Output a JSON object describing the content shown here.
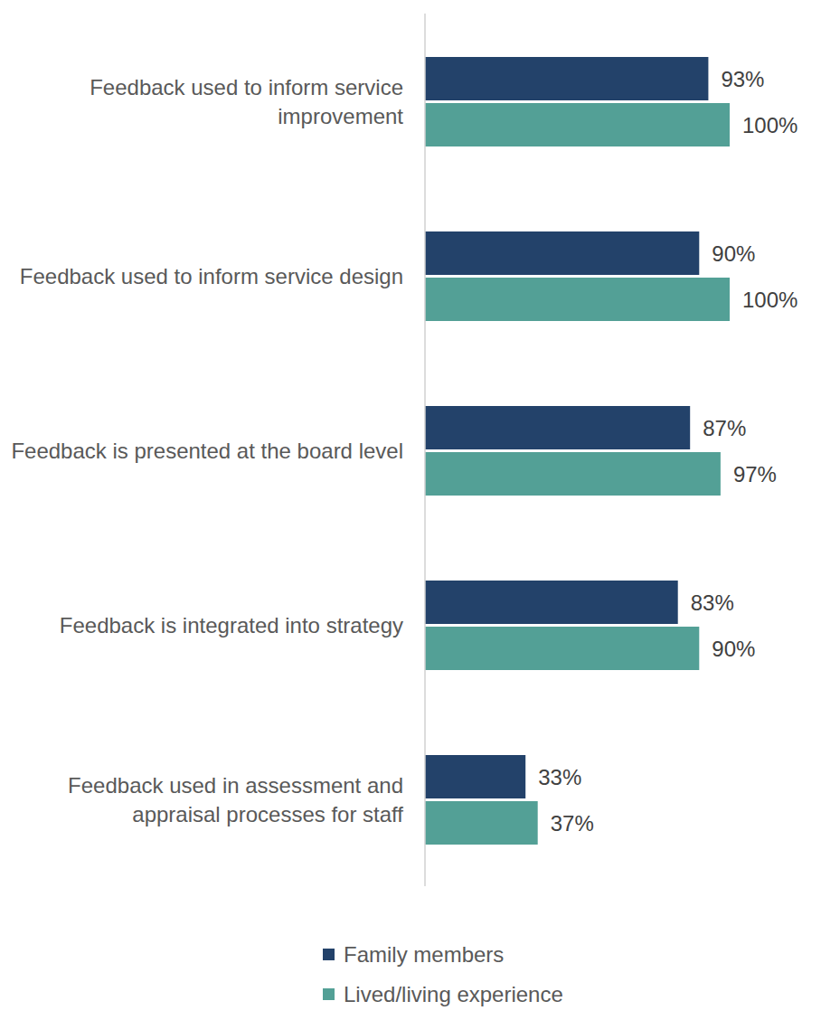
{
  "chart_data": {
    "type": "bar",
    "orientation": "horizontal",
    "categories": [
      "Feedback used to inform service improvement",
      "Feedback used to inform service design",
      "Feedback is presented at the board level",
      "Feedback is integrated into strategy",
      "Feedback used in assessment and appraisal processes for staff"
    ],
    "series": [
      {
        "name": "Family members",
        "color": "#23426a",
        "values": [
          93,
          90,
          87,
          83,
          33
        ],
        "value_labels": [
          "93%",
          "90%",
          "87%",
          "83%",
          "33%"
        ]
      },
      {
        "name": "Lived/living experience",
        "color": "#53a096",
        "values": [
          100,
          100,
          97,
          90,
          37
        ],
        "value_labels": [
          "100%",
          "100%",
          "97%",
          "90%",
          "37%"
        ]
      }
    ],
    "xlim": [
      0,
      100
    ],
    "data_labels": true,
    "legend": "bottom",
    "grid": false,
    "tick_labels": "y"
  }
}
